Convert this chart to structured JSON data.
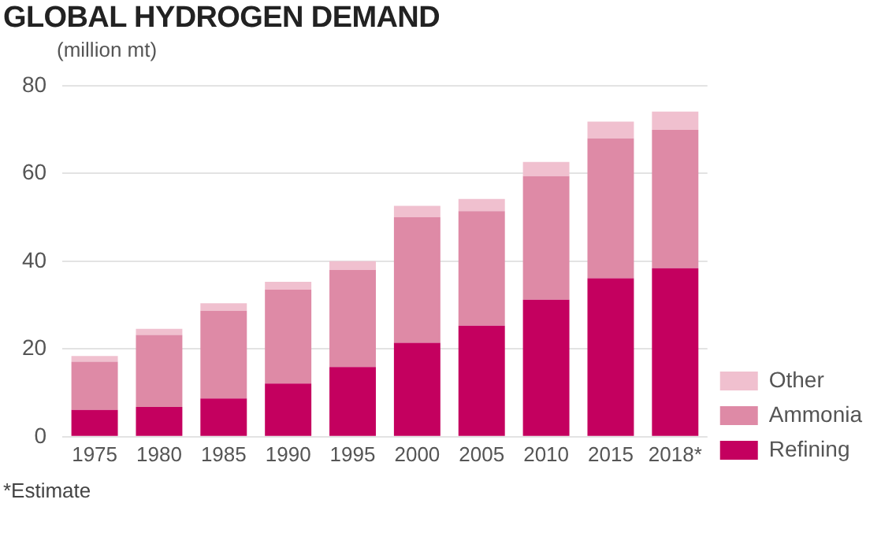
{
  "chart_data": {
    "type": "bar",
    "title": "GLOBAL HYDROGEN DEMAND",
    "ylabel": "(million mt)",
    "categories": [
      "1975",
      "1980",
      "1985",
      "1990",
      "1995",
      "2000",
      "2005",
      "2010",
      "2015",
      "2018*"
    ],
    "series": [
      {
        "name": "Refining",
        "color": "#c4005f",
        "values": [
          6.1,
          6.8,
          8.7,
          12.1,
          15.9,
          21.4,
          25.3,
          31.2,
          36.1,
          38.4
        ]
      },
      {
        "name": "Ammonia",
        "color": "#de8aa6",
        "values": [
          11.0,
          16.4,
          20.0,
          21.4,
          22.1,
          28.6,
          26.1,
          28.2,
          31.9,
          31.5
        ]
      },
      {
        "name": "Other",
        "color": "#f0c0cf",
        "values": [
          1.3,
          1.4,
          1.7,
          1.8,
          2.0,
          2.6,
          2.8,
          3.2,
          3.8,
          4.2
        ]
      }
    ],
    "stacked": true,
    "ylim": [
      0,
      80
    ],
    "yticks": [
      0,
      20,
      40,
      60,
      80
    ],
    "grid": "y",
    "legend": "bottom right",
    "annotations": [
      "*Estimate"
    ]
  }
}
